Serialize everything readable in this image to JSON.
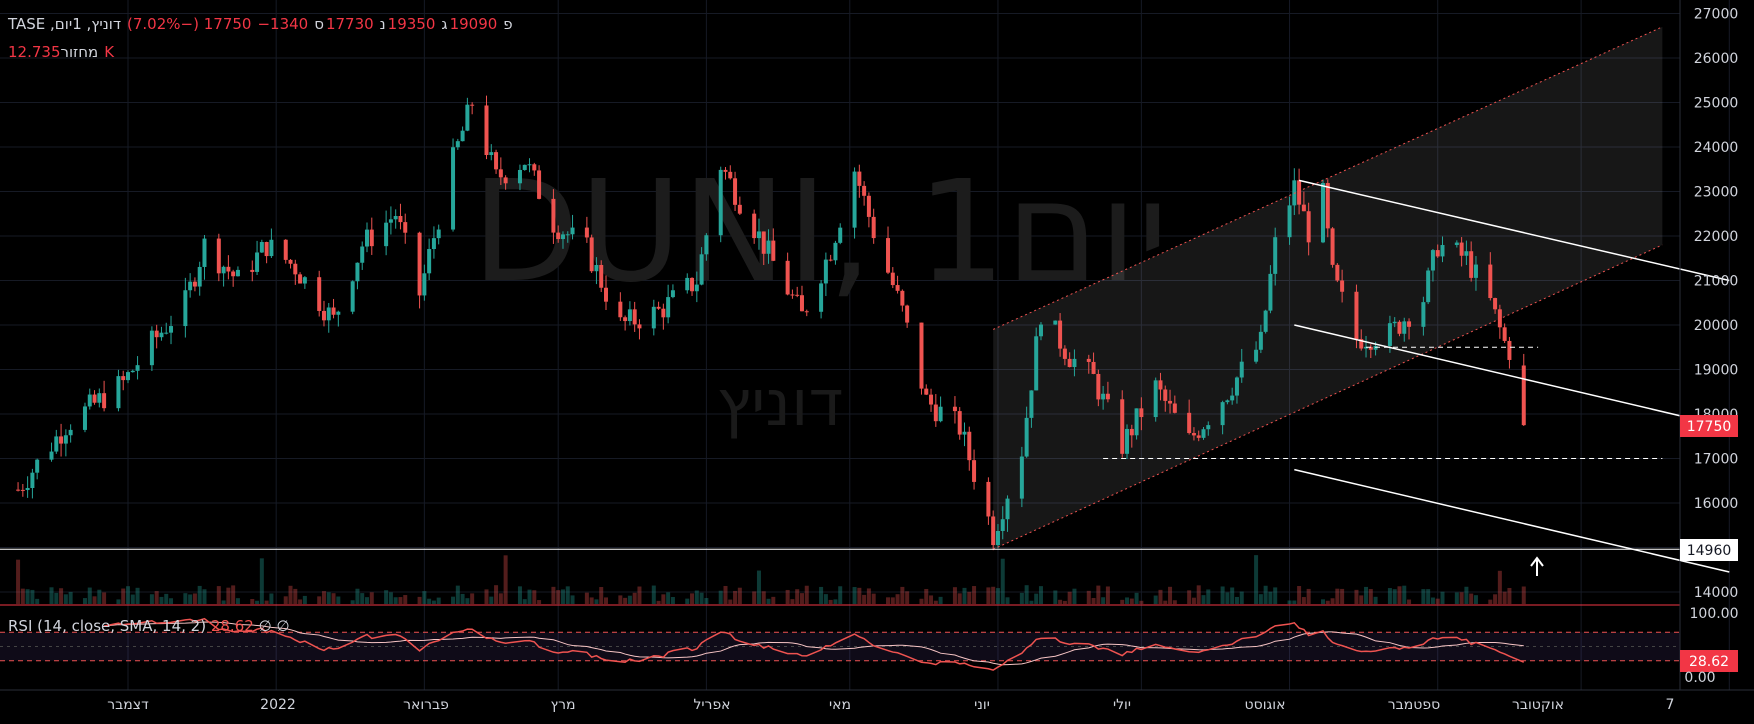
{
  "header": {
    "symbol": "דוניץ, 1יום, TASE",
    "open_key": "פ",
    "open": "19090",
    "high_key": "ג",
    "high": "19350",
    "low_key": "נ",
    "low": "17730",
    "close_key": "ס",
    "close": "17750",
    "change": "−1340 (−7.02%)",
    "volume_label": "מחזור",
    "volume": "12.735K"
  },
  "watermark": {
    "main": "DUNI, 1יום",
    "sub": "דוניץ"
  },
  "rsi_legend": {
    "label": "RSI (14, close, SMA, 14, 2)",
    "value": "28.62",
    "na1": "∅",
    "na2": "∅"
  },
  "price_labels": {
    "last": "17750",
    "level": "14960",
    "rsi_last": "28.62",
    "rsi_top": "100.00",
    "rsi_bottom": "0.00"
  },
  "colors": {
    "up": "#26a69a",
    "down": "#ef5350",
    "rsi_line": "#ef5350",
    "accent_label": "#f23645"
  },
  "chart_data": [
    {
      "type": "candlestick",
      "title": "",
      "ylim": [
        13700,
        27200
      ],
      "y_ticks": [
        14000,
        15000,
        16000,
        17000,
        18000,
        19000,
        20000,
        21000,
        22000,
        23000,
        24000,
        25000,
        26000,
        27000
      ],
      "x_tick_labels": [
        "דצמבר",
        "2022",
        "פברואר",
        "מרץ",
        "אפריל",
        "מאי",
        "יוני",
        "יולי",
        "אוגוסט",
        "ספטמבר",
        "אוקטובר",
        "7"
      ],
      "anchors": [
        {
          "d": "2021-11-08",
          "c": 16300
        },
        {
          "d": "2021-11-18",
          "c": 17750
        },
        {
          "d": "2021-11-30",
          "c": 18700
        },
        {
          "d": "2021-12-06",
          "c": 19600
        },
        {
          "d": "2021-12-13",
          "c": 20500
        },
        {
          "d": "2021-12-17",
          "c": 21800
        },
        {
          "d": "2021-12-24",
          "c": 21000
        },
        {
          "d": "2021-12-30",
          "c": 21800
        },
        {
          "d": "2022-01-05",
          "c": 21300
        },
        {
          "d": "2022-01-13",
          "c": 20100
        },
        {
          "d": "2022-01-19",
          "c": 21800
        },
        {
          "d": "2022-01-26",
          "c": 22500
        },
        {
          "d": "2022-01-31",
          "c": 20700
        },
        {
          "d": "2022-02-07",
          "c": 23700
        },
        {
          "d": "2022-02-11",
          "c": 25000
        },
        {
          "d": "2022-02-16",
          "c": 23300
        },
        {
          "d": "2022-02-22",
          "c": 23700
        },
        {
          "d": "2022-02-28",
          "c": 22300
        },
        {
          "d": "2022-03-07",
          "c": 21700
        },
        {
          "d": "2022-03-14",
          "c": 20000
        },
        {
          "d": "2022-03-22",
          "c": 20300
        },
        {
          "d": "2022-03-30",
          "c": 21000
        },
        {
          "d": "2022-04-04",
          "c": 23600
        },
        {
          "d": "2022-04-08",
          "c": 22800
        },
        {
          "d": "2022-04-14",
          "c": 21600
        },
        {
          "d": "2022-04-21",
          "c": 20200
        },
        {
          "d": "2022-04-27",
          "c": 21700
        },
        {
          "d": "2022-05-02",
          "c": 23500
        },
        {
          "d": "2022-05-06",
          "c": 22100
        },
        {
          "d": "2022-05-12",
          "c": 20300
        },
        {
          "d": "2022-05-17",
          "c": 18300
        },
        {
          "d": "2022-05-24",
          "c": 17700
        },
        {
          "d": "2022-05-31",
          "c": 15300
        },
        {
          "d": "2022-06-06",
          "c": 17200
        },
        {
          "d": "2022-06-10",
          "c": 20300
        },
        {
          "d": "2022-06-16",
          "c": 19300
        },
        {
          "d": "2022-06-21",
          "c": 18800
        },
        {
          "d": "2022-06-27",
          "c": 17300
        },
        {
          "d": "2022-07-04",
          "c": 18600
        },
        {
          "d": "2022-07-11",
          "c": 17400
        },
        {
          "d": "2022-07-19",
          "c": 18500
        },
        {
          "d": "2022-07-26",
          "c": 19600
        },
        {
          "d": "2022-07-29",
          "c": 21800
        },
        {
          "d": "2022-08-02",
          "c": 23100
        },
        {
          "d": "2022-08-05",
          "c": 22100
        },
        {
          "d": "2022-08-08",
          "c": 22900
        },
        {
          "d": "2022-08-10",
          "c": 21100
        },
        {
          "d": "2022-08-15",
          "c": 19700
        },
        {
          "d": "2022-08-22",
          "c": 19800
        },
        {
          "d": "2022-08-29",
          "c": 20600
        },
        {
          "d": "2022-09-01",
          "c": 21800
        },
        {
          "d": "2022-09-07",
          "c": 21500
        },
        {
          "d": "2022-09-12",
          "c": 20500
        },
        {
          "d": "2022-09-15",
          "c": 19600
        },
        {
          "d": "2022-09-18",
          "c": 19090
        }
      ],
      "last_candle": {
        "d": "2022-09-19",
        "open": 19090,
        "high": 19350,
        "low": 17730,
        "close": 17750
      },
      "lines": [
        {
          "style": "dotted-red",
          "from": {
            "d": "2022-05-31",
            "v": 14960
          },
          "to": {
            "d": "2022-10-18",
            "v": 21800
          }
        },
        {
          "style": "dotted-red",
          "from": {
            "d": "2022-05-31",
            "v": 19900
          },
          "to": {
            "d": "2022-10-18",
            "v": 26700
          }
        },
        {
          "style": "solid-white",
          "from": {
            "d": "2022-08-03",
            "v": 23250
          },
          "to": {
            "d": "2022-11-01",
            "v": 21000
          }
        },
        {
          "style": "solid-white",
          "from": {
            "d": "2022-08-02",
            "v": 20000
          },
          "to": {
            "d": "2022-11-01",
            "v": 17700
          }
        },
        {
          "style": "solid-white",
          "from": {
            "d": "2022-08-02",
            "v": 16750
          },
          "to": {
            "d": "2022-11-01",
            "v": 14450
          }
        },
        {
          "style": "dashed-white",
          "from": {
            "d": "2022-06-23",
            "v": 17000
          },
          "to": {
            "d": "2022-10-18",
            "v": 17000
          }
        },
        {
          "style": "dashed-white",
          "from": {
            "d": "2022-08-17",
            "v": 19500
          },
          "to": {
            "d": "2022-09-22",
            "v": 19500
          }
        },
        {
          "style": "solid-white-horizontal",
          "v": 14960
        }
      ]
    },
    {
      "type": "line",
      "title": "",
      "series": [
        {
          "name": "RSI (14, close, SMA, 14, 2)",
          "last": 28.62
        }
      ],
      "ylim": [
        0,
        100
      ],
      "bands": [
        30,
        70
      ]
    }
  ]
}
